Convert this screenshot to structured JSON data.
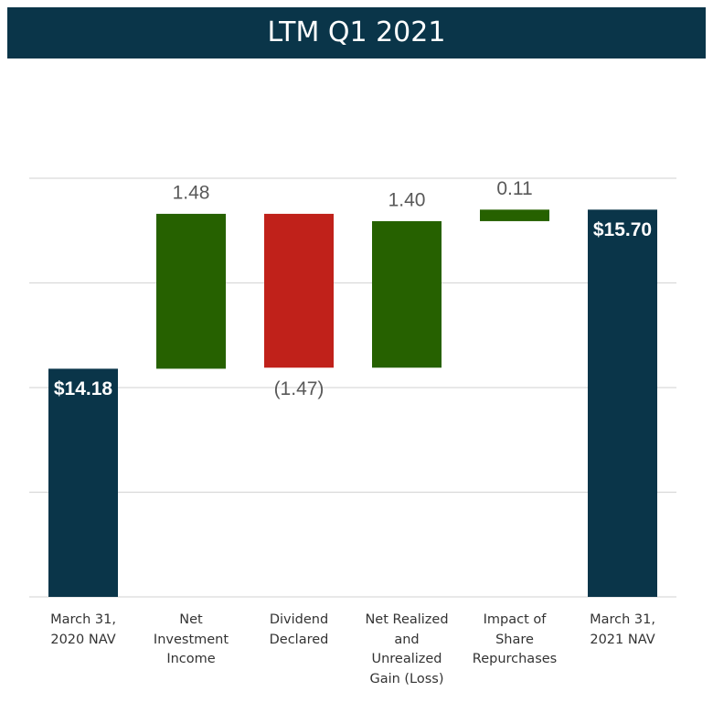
{
  "chart_data": {
    "type": "waterfall",
    "title": "LTM Q1 2021",
    "categories": [
      "March 31,\n2020 NAV",
      "Net\nInvestment\nIncome",
      "Dividend\nDeclared",
      "Net Realized\nand\nUnrealized\nGain (Loss)",
      "Impact of\nShare\nRepurchases",
      "March 31,\n2021 NAV"
    ],
    "values": [
      14.18,
      1.48,
      -1.47,
      1.4,
      0.11,
      15.7
    ],
    "value_labels": [
      "$14.18",
      "1.48",
      "(1.47)",
      "1.40",
      "0.11",
      "$15.70"
    ],
    "totals": [
      true,
      false,
      false,
      false,
      false,
      true
    ],
    "colors": [
      "#0a3549",
      "#266100",
      "#c0211a",
      "#266100",
      "#266100",
      "#0a3549"
    ],
    "ylim": [
      12,
      16
    ],
    "yticks": [
      12,
      13,
      14,
      15,
      16
    ],
    "grid": true
  }
}
